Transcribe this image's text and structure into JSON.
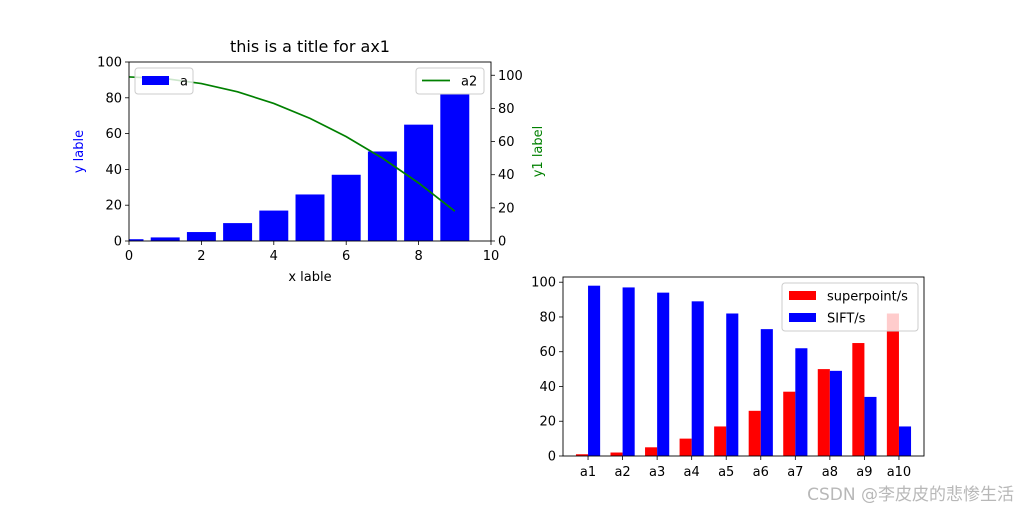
{
  "chart_data": [
    {
      "type": "bar",
      "title": "this is a title for ax1",
      "xlabel": "x lable",
      "ylabel": "y lable",
      "ylabel_color": "#0000ff",
      "xlim": [
        0,
        10
      ],
      "ylim": [
        0,
        100
      ],
      "xticks": [
        "0",
        "2",
        "4",
        "6",
        "8",
        "10"
      ],
      "yticks": [
        "0",
        "20",
        "40",
        "60",
        "80",
        "100"
      ],
      "legend_position": "upper-left",
      "bars": {
        "name": "a",
        "color": "#0000ff",
        "x": [
          0,
          1,
          2,
          3,
          4,
          5,
          6,
          7,
          8,
          9
        ],
        "values": [
          1,
          2,
          5,
          10,
          17,
          26,
          37,
          50,
          65,
          82
        ]
      },
      "secondary": {
        "type": "line",
        "name": "a2",
        "color": "#008000",
        "ylabel": "y1 label",
        "ylabel_color": "#008000",
        "ylim": [
          0,
          108
        ],
        "yticks": [
          "0",
          "20",
          "40",
          "60",
          "80",
          "100"
        ],
        "legend_position": "upper-right",
        "x": [
          0,
          1,
          2,
          3,
          4,
          5,
          6,
          7,
          8,
          9
        ],
        "values": [
          99,
          98,
          95,
          90,
          83,
          74,
          63,
          50,
          35,
          18
        ]
      }
    },
    {
      "type": "bar",
      "title": "",
      "categories": [
        "a1",
        "a2",
        "a3",
        "a4",
        "a5",
        "a6",
        "a7",
        "a8",
        "a9",
        "a10"
      ],
      "ylim": [
        0,
        103
      ],
      "yticks": [
        "0",
        "20",
        "40",
        "60",
        "80",
        "100"
      ],
      "legend_position": "upper-right",
      "series": [
        {
          "name": "superpoint/s",
          "color": "#ff0000",
          "values": [
            1,
            2,
            5,
            10,
            17,
            26,
            37,
            50,
            65,
            82
          ]
        },
        {
          "name": "SIFT/s",
          "color": "#0000ff",
          "values": [
            98,
            97,
            94,
            89,
            82,
            73,
            62,
            49,
            34,
            17
          ]
        }
      ]
    }
  ],
  "watermark": "CSDN @李皮皮的悲惨生活"
}
